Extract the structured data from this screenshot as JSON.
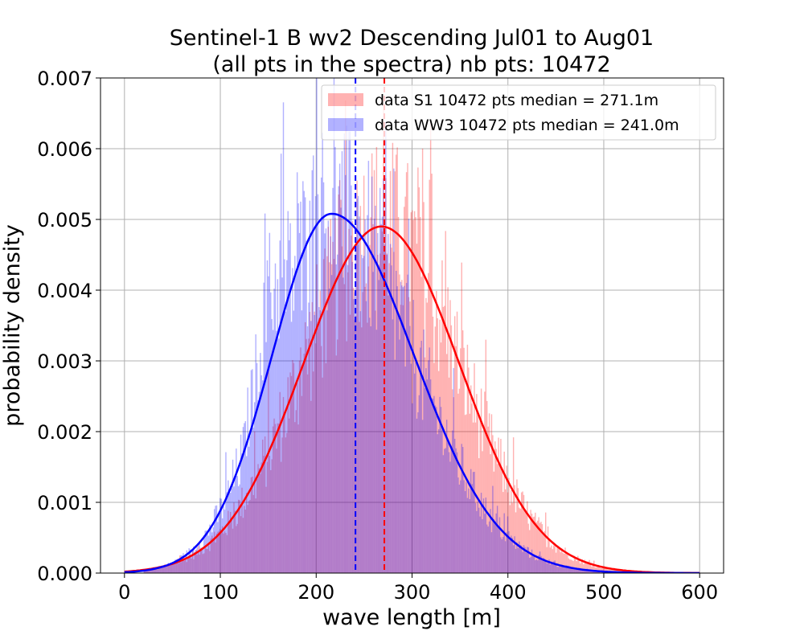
{
  "chart_data": {
    "type": "histogram",
    "title_line1": "Sentinel-1 B wv2 Descending Jul01 to Aug01",
    "title_line2": "(all pts in the spectra) nb pts: 10472",
    "xlabel": "wave length [m]",
    "ylabel": "probability density",
    "xlim": [
      -25,
      625
    ],
    "ylim": [
      0,
      0.007
    ],
    "x_ticks": [
      0,
      100,
      200,
      300,
      400,
      500,
      600
    ],
    "x_tick_labels": [
      "0",
      "100",
      "200",
      "300",
      "400",
      "500",
      "600"
    ],
    "y_ticks": [
      0,
      0.001,
      0.002,
      0.003,
      0.004,
      0.005,
      0.006,
      0.007
    ],
    "y_tick_labels": [
      "0.000",
      "0.001",
      "0.002",
      "0.003",
      "0.004",
      "0.005",
      "0.006",
      "0.007"
    ],
    "grid": true,
    "legend_position": "top-right",
    "series": [
      {
        "name": "data S1 10472 pts median = 271.1m",
        "color": "#ff0000",
        "hist_alpha": 0.3,
        "median": 271.1,
        "fit_peak_x": 268,
        "fit_peak_y": 0.0049,
        "fit_sigma": 81
      },
      {
        "name": "data WW3 10472 pts median = 241.0m",
        "color": "#0000ff",
        "hist_alpha": 0.3,
        "median": 241.0,
        "fit_peak_x": 216,
        "fit_peak_y": 0.00508,
        "fit_sigma_left": 62,
        "fit_sigma_right": 86
      }
    ]
  }
}
